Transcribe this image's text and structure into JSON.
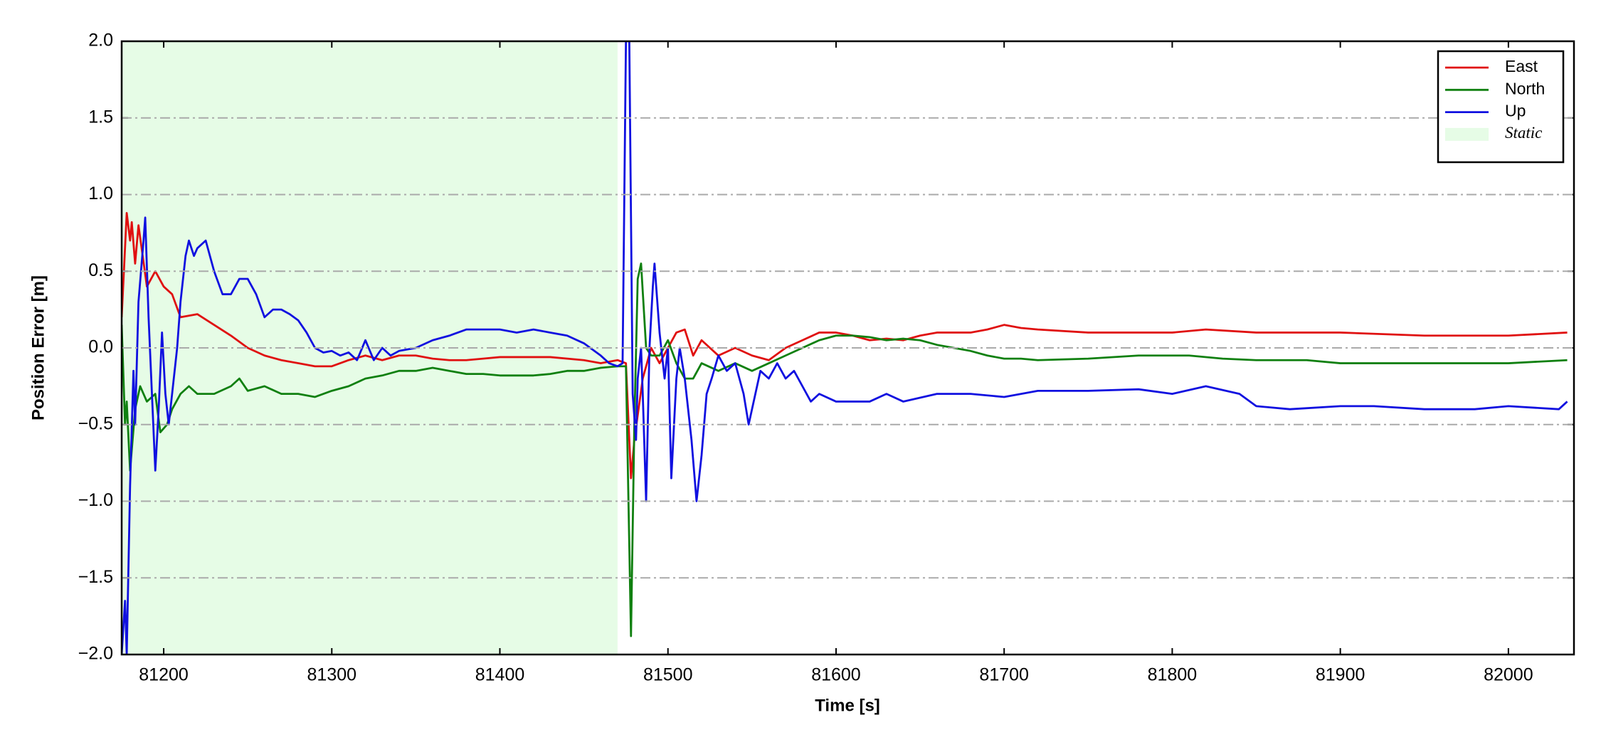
{
  "chart_data": {
    "type": "line",
    "xlabel": "Time [s]",
    "ylabel": "Position Error [m]",
    "xlim": [
      81175,
      82039
    ],
    "ylim": [
      -2,
      2
    ],
    "xticks": [
      81200,
      81300,
      81400,
      81500,
      81600,
      81700,
      81800,
      81900,
      82000
    ],
    "yticks": [
      {
        "value": -2,
        "label": "−2.0"
      },
      {
        "value": -1.5,
        "label": "−1.5"
      },
      {
        "value": -1,
        "label": "−1.0"
      },
      {
        "value": -0.5,
        "label": "−0.5"
      },
      {
        "value": 0,
        "label": "0.0"
      },
      {
        "value": 0.5,
        "label": "0.5"
      },
      {
        "value": 1,
        "label": "1.0"
      },
      {
        "value": 1.5,
        "label": "1.5"
      },
      {
        "value": 2,
        "label": "2.0"
      }
    ],
    "grid": true,
    "legend": "upper right",
    "spans": [
      {
        "name": "Static",
        "xlim": [
          81175,
          81470
        ],
        "color": "#e6fce6"
      }
    ],
    "series": [
      {
        "name": "East",
        "color": "#e01010",
        "x": [
          81175,
          81178,
          81180,
          81181,
          81183,
          81185,
          81190,
          81195,
          81200,
          81205,
          81210,
          81220,
          81230,
          81240,
          81250,
          81260,
          81270,
          81280,
          81290,
          81300,
          81310,
          81320,
          81330,
          81340,
          81350,
          81360,
          81370,
          81380,
          81390,
          81400,
          81430,
          81450,
          81460,
          81470,
          81475,
          81478,
          81480,
          81485,
          81490,
          81495,
          81500,
          81505,
          81510,
          81515,
          81520,
          81530,
          81540,
          81550,
          81560,
          81570,
          81580,
          81590,
          81600,
          81610,
          81620,
          81630,
          81640,
          81650,
          81660,
          81670,
          81680,
          81690,
          81700,
          81710,
          81720,
          81750,
          81780,
          81800,
          81820,
          81850,
          81900,
          81950,
          82000,
          82035
        ],
        "values": [
          0.2,
          0.88,
          0.7,
          0.82,
          0.55,
          0.8,
          0.4,
          0.5,
          0.4,
          0.35,
          0.2,
          0.22,
          0.15,
          0.08,
          0.0,
          -0.05,
          -0.08,
          -0.1,
          -0.12,
          -0.12,
          -0.08,
          -0.05,
          -0.08,
          -0.05,
          -0.05,
          -0.07,
          -0.08,
          -0.08,
          -0.07,
          -0.06,
          -0.06,
          -0.08,
          -0.1,
          -0.08,
          -0.1,
          -0.85,
          -0.6,
          -0.2,
          0.0,
          -0.1,
          0.0,
          0.1,
          0.12,
          -0.05,
          0.05,
          -0.05,
          0.0,
          -0.05,
          -0.08,
          0.0,
          0.05,
          0.1,
          0.1,
          0.08,
          0.05,
          0.06,
          0.05,
          0.08,
          0.1,
          0.1,
          0.1,
          0.12,
          0.15,
          0.13,
          0.12,
          0.1,
          0.1,
          0.1,
          0.12,
          0.1,
          0.1,
          0.08,
          0.08,
          0.1
        ]
      },
      {
        "name": "North",
        "color": "#108010",
        "x": [
          81175,
          81177,
          81178,
          81180,
          81183,
          81186,
          81190,
          81195,
          81198,
          81202,
          81205,
          81210,
          81215,
          81220,
          81225,
          81230,
          81240,
          81245,
          81250,
          81260,
          81270,
          81280,
          81290,
          81300,
          81310,
          81320,
          81330,
          81340,
          81350,
          81360,
          81370,
          81380,
          81390,
          81400,
          81410,
          81420,
          81430,
          81440,
          81450,
          81460,
          81470,
          81475,
          81478,
          81480,
          81482,
          81484,
          81487,
          81490,
          81495,
          81500,
          81505,
          81510,
          81515,
          81520,
          81530,
          81540,
          81550,
          81560,
          81570,
          81580,
          81590,
          81600,
          81610,
          81620,
          81630,
          81640,
          81650,
          81660,
          81670,
          81680,
          81690,
          81700,
          81710,
          81720,
          81750,
          81780,
          81800,
          81810,
          81830,
          81850,
          81880,
          81900,
          81950,
          82000,
          82035
        ],
        "values": [
          0.15,
          -0.5,
          -0.35,
          -0.8,
          -0.4,
          -0.25,
          -0.35,
          -0.3,
          -0.55,
          -0.5,
          -0.4,
          -0.3,
          -0.25,
          -0.3,
          -0.3,
          -0.3,
          -0.25,
          -0.2,
          -0.28,
          -0.25,
          -0.3,
          -0.3,
          -0.32,
          -0.28,
          -0.25,
          -0.2,
          -0.18,
          -0.15,
          -0.15,
          -0.13,
          -0.15,
          -0.17,
          -0.17,
          -0.18,
          -0.18,
          -0.18,
          -0.17,
          -0.15,
          -0.15,
          -0.13,
          -0.12,
          -0.12,
          -1.88,
          -0.5,
          0.45,
          0.55,
          0.0,
          -0.05,
          -0.05,
          0.05,
          -0.1,
          -0.2,
          -0.2,
          -0.1,
          -0.15,
          -0.1,
          -0.15,
          -0.1,
          -0.05,
          0.0,
          0.05,
          0.08,
          0.08,
          0.07,
          0.05,
          0.06,
          0.05,
          0.02,
          0.0,
          -0.02,
          -0.05,
          -0.07,
          -0.07,
          -0.08,
          -0.07,
          -0.05,
          -0.05,
          -0.05,
          -0.07,
          -0.08,
          -0.08,
          -0.1,
          -0.1,
          -0.1,
          -0.08
        ]
      },
      {
        "name": "Up",
        "color": "#1010e0",
        "x": [
          81175,
          81177,
          81178,
          81180,
          81182,
          81183,
          81185,
          81188,
          81189,
          81191,
          81193,
          81195,
          81197,
          81199,
          81201,
          81203,
          81205,
          81208,
          81210,
          81213,
          81215,
          81218,
          81220,
          81225,
          81230,
          81235,
          81240,
          81245,
          81250,
          81255,
          81260,
          81265,
          81270,
          81275,
          81280,
          81285,
          81290,
          81295,
          81300,
          81305,
          81310,
          81315,
          81320,
          81325,
          81330,
          81335,
          81340,
          81350,
          81360,
          81370,
          81380,
          81390,
          81400,
          81410,
          81420,
          81430,
          81440,
          81450,
          81460,
          81465,
          81470,
          81473,
          81475,
          81477,
          81479,
          81481,
          81482,
          81484,
          81485,
          81487,
          81489,
          81491,
          81492,
          81495,
          81498,
          81500,
          81502,
          81505,
          81507,
          81510,
          81514,
          81517,
          81520,
          81523,
          81526,
          81530,
          81535,
          81540,
          81545,
          81548,
          81550,
          81555,
          81560,
          81565,
          81570,
          81575,
          81580,
          81585,
          81590,
          81600,
          81620,
          81630,
          81640,
          81660,
          81680,
          81700,
          81720,
          81750,
          81780,
          81800,
          81820,
          81840,
          81850,
          81870,
          81900,
          81920,
          81950,
          81980,
          82000,
          82030,
          82035
        ],
        "values": [
          -2.0,
          -1.65,
          -2.0,
          -0.9,
          -0.15,
          -0.5,
          0.3,
          0.7,
          0.85,
          0.2,
          -0.3,
          -0.8,
          -0.4,
          0.1,
          -0.3,
          -0.5,
          -0.3,
          0.0,
          0.3,
          0.6,
          0.7,
          0.6,
          0.65,
          0.7,
          0.5,
          0.35,
          0.35,
          0.45,
          0.45,
          0.35,
          0.2,
          0.25,
          0.25,
          0.22,
          0.18,
          0.1,
          0.0,
          -0.03,
          -0.02,
          -0.05,
          -0.03,
          -0.08,
          0.05,
          -0.08,
          0.0,
          -0.05,
          -0.02,
          0.0,
          0.05,
          0.08,
          0.12,
          0.12,
          0.12,
          0.1,
          0.12,
          0.1,
          0.08,
          0.03,
          -0.05,
          -0.1,
          -0.12,
          -0.1,
          2.0,
          2.0,
          -0.3,
          -0.6,
          -0.2,
          0.0,
          -0.3,
          -1.0,
          0.0,
          0.4,
          0.55,
          0.1,
          -0.2,
          0.0,
          -0.85,
          -0.2,
          0.0,
          -0.2,
          -0.6,
          -1.0,
          -0.7,
          -0.3,
          -0.2,
          -0.05,
          -0.15,
          -0.1,
          -0.3,
          -0.5,
          -0.4,
          -0.15,
          -0.2,
          -0.1,
          -0.2,
          -0.15,
          -0.25,
          -0.35,
          -0.3,
          -0.35,
          -0.35,
          -0.3,
          -0.35,
          -0.3,
          -0.3,
          -0.32,
          -0.28,
          -0.28,
          -0.27,
          -0.3,
          -0.25,
          -0.3,
          -0.38,
          -0.4,
          -0.38,
          -0.38,
          -0.4,
          -0.4,
          -0.38,
          -0.4,
          -0.35
        ]
      }
    ]
  }
}
